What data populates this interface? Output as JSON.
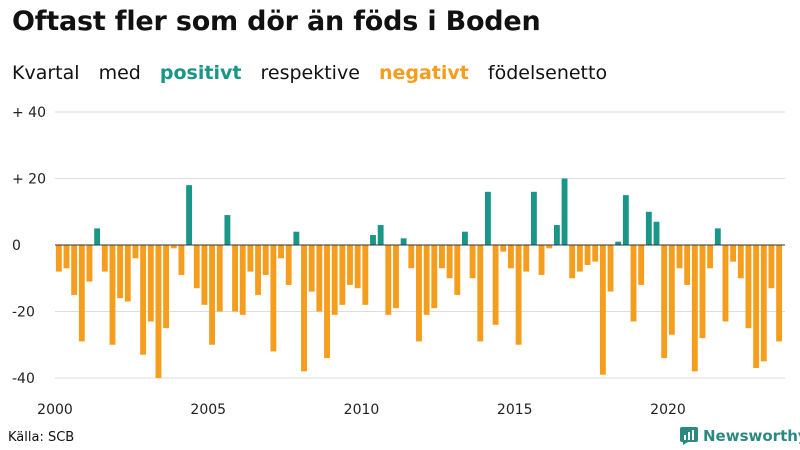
{
  "title": "Oftast fler som dör än föds i Boden",
  "subtitle": {
    "w1": "Kvartal",
    "w2": "med",
    "positive": "positivt",
    "w3": "respektive",
    "negative": "negativt",
    "w4": "födelsenetto"
  },
  "colors": {
    "positive": "#1a9688",
    "negative": "#f59d1c",
    "grid": "#dddddd",
    "zero": "#333333"
  },
  "source": "Källa: SCB",
  "brand": "Newsworthy",
  "brand_icon": "bar-chart-logo-icon",
  "chart_data": {
    "type": "bar",
    "title": "Oftast fler som dör än föds i Boden",
    "xlabel": "",
    "ylabel": "",
    "ylim": [
      -40,
      40
    ],
    "y_ticks": [
      {
        "value": 40,
        "label": "+ 40"
      },
      {
        "value": 20,
        "label": "+ 20"
      },
      {
        "value": 0,
        "label": "0"
      },
      {
        "value": -20,
        "label": "-20"
      },
      {
        "value": -40,
        "label": "-40"
      }
    ],
    "x_ticks": [
      {
        "year": 2000,
        "label": "2000"
      },
      {
        "year": 2005,
        "label": "2005"
      },
      {
        "year": 2010,
        "label": "2010"
      },
      {
        "year": 2015,
        "label": "2015"
      },
      {
        "year": 2020,
        "label": "2020"
      }
    ],
    "start_year": 2000,
    "values": [
      -8,
      -7,
      -15,
      -29,
      -11,
      5,
      -8,
      -30,
      -16,
      -17,
      -4,
      -33,
      -23,
      -40,
      -25,
      -1,
      -9,
      18,
      -13,
      -18,
      -30,
      -20,
      9,
      -20,
      -21,
      -8,
      -15,
      -9,
      -32,
      -4,
      -12,
      4,
      -38,
      -14,
      -20,
      -34,
      -21,
      -18,
      -12,
      -13,
      -18,
      3,
      6,
      -21,
      -19,
      2,
      -7,
      -29,
      -21,
      -19,
      -7,
      -10,
      -15,
      4,
      -10,
      -29,
      16,
      -24,
      -2,
      -7,
      -30,
      -8,
      16,
      -9,
      -1,
      6,
      20,
      -10,
      -8,
      -6,
      -5,
      -39,
      -14,
      1,
      15,
      -23,
      -12,
      10,
      7,
      -34,
      -27,
      -7,
      -12,
      -38,
      -28,
      -7,
      5,
      -23,
      -5,
      -10,
      -25,
      -37,
      -35,
      -13,
      -29
    ]
  }
}
